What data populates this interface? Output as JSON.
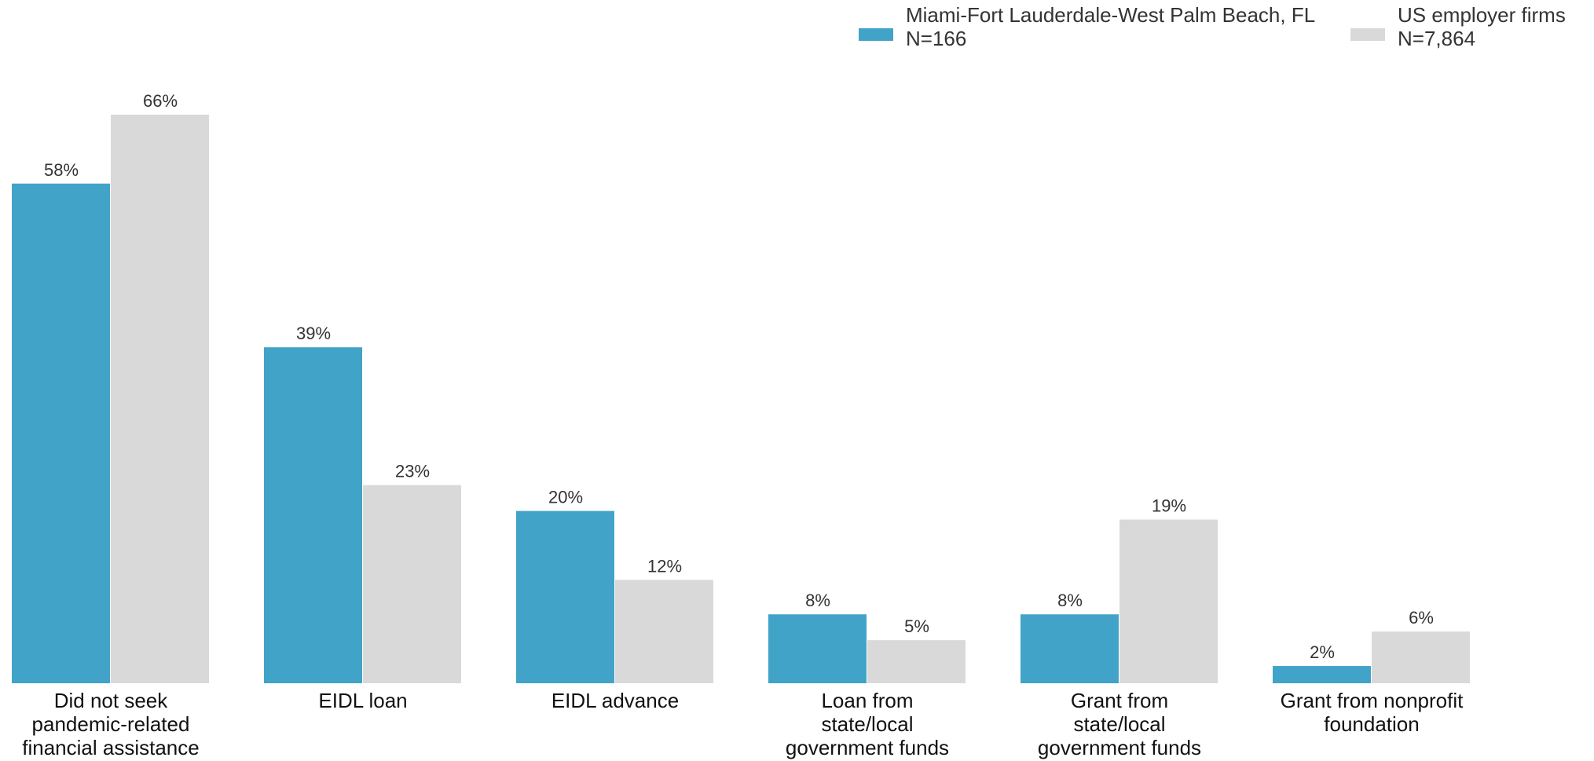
{
  "chart_data": {
    "type": "bar",
    "categories": [
      [
        "Did not seek",
        "pandemic-related",
        "financial assistance"
      ],
      [
        "EIDL loan"
      ],
      [
        "EIDL advance"
      ],
      [
        "Loan from",
        "state/local",
        "government funds"
      ],
      [
        "Grant from",
        "state/local",
        "government funds"
      ],
      [
        "Grant from nonprofit",
        "foundation"
      ]
    ],
    "series": [
      {
        "name": "Miami-Fort Lauderdale-West Palm Beach, FL",
        "n_label": "N=166",
        "color": "#42a3c8",
        "values": [
          58,
          39,
          20,
          8,
          8,
          2
        ],
        "labels": [
          "58%",
          "39%",
          "20%",
          "8%",
          "8%",
          "2%"
        ]
      },
      {
        "name": "US employer firms",
        "n_label": "N=7,864",
        "color": "#d9d9d9",
        "values": [
          66,
          23,
          12,
          5,
          19,
          6
        ],
        "labels": [
          "66%",
          "23%",
          "12%",
          "5%",
          "19%",
          "6%"
        ]
      }
    ],
    "ylim": [
      0,
      66
    ],
    "grid": false,
    "legend_position": "top-right"
  }
}
